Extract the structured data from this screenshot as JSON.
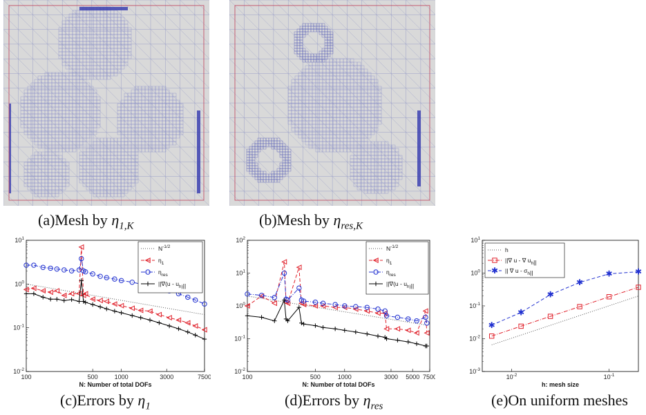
{
  "captions": {
    "a": {
      "prefix": "(a)Mesh by ",
      "math": "η",
      "sub": "1,K"
    },
    "b": {
      "prefix": "(b)Mesh by ",
      "math": "η",
      "sub": "res,K"
    },
    "c": {
      "prefix": "(c)Errors by ",
      "math": "η",
      "sub": "1"
    },
    "d": {
      "prefix": "(d)Errors by ",
      "math": "η",
      "sub": "res"
    },
    "e": {
      "prefix": "(e)On uniform meshes",
      "math": "",
      "sub": ""
    }
  },
  "colors": {
    "mesh_bg": "#d9d9d9",
    "mesh_line": "#9aa0c8",
    "mesh_dense": "#3b3fb0",
    "boundary": "#c0405a",
    "red": "#e0202a",
    "blue": "#2030d0",
    "black": "#000000",
    "gray": "#555555"
  },
  "chart_data": [
    {
      "type": "line",
      "xscale": "log",
      "yscale": "log",
      "xlim": [
        100,
        7500
      ],
      "ylim": [
        0.01,
        10
      ],
      "xlabel": "N: Number of total DOFs",
      "xticks": [
        "100",
        "500",
        "1000",
        "3000",
        "7500"
      ],
      "xtick_values": [
        100,
        500,
        1000,
        3000,
        7500
      ],
      "yticks": [
        "10^-2",
        "10^-1",
        "10^0",
        "10^1"
      ],
      "legend": [
        "N^-1/2",
        "η_1",
        "η_res",
        "||∇(u - u_h)||"
      ],
      "legend_position": "top-right",
      "series": [
        {
          "name": "N^-1/2",
          "style": "dotted",
          "color": "#555555",
          "x": [
            100,
            7500
          ],
          "y": [
            1.0,
            0.2
          ]
        },
        {
          "name": "η_1",
          "style": "dashed",
          "color": "#e0202a",
          "marker": "triangle-left",
          "x": [
            100,
            120,
            150,
            180,
            210,
            250,
            300,
            360,
            380,
            400,
            420,
            500,
            600,
            700,
            850,
            1000,
            1300,
            1600,
            2000,
            2500,
            3200,
            4000,
            5000,
            6000,
            7500
          ],
          "y": [
            0.75,
            0.8,
            0.7,
            0.65,
            0.7,
            0.55,
            0.6,
            0.6,
            7.0,
            0.55,
            0.6,
            0.45,
            0.42,
            0.4,
            0.35,
            0.32,
            0.28,
            0.25,
            0.24,
            0.2,
            0.17,
            0.15,
            0.13,
            0.11,
            0.09
          ]
        },
        {
          "name": "η_res",
          "style": "dashdot",
          "color": "#2030d0",
          "marker": "circle",
          "x": [
            100,
            120,
            150,
            180,
            210,
            250,
            300,
            360,
            380,
            400,
            420,
            500,
            600,
            700,
            850,
            1000,
            1300,
            1600,
            2000,
            2500,
            3200,
            4000,
            5000,
            6000,
            7500
          ],
          "y": [
            2.7,
            2.7,
            2.4,
            2.3,
            2.2,
            2.1,
            2.0,
            2.1,
            3.8,
            2.0,
            1.9,
            1.7,
            1.5,
            1.4,
            1.3,
            1.2,
            1.1,
            1.0,
            0.9,
            0.8,
            0.7,
            0.6,
            0.5,
            0.43,
            0.35
          ]
        },
        {
          "name": "||∇(u - u_h)||",
          "style": "solid",
          "color": "#000000",
          "marker": "plus",
          "x": [
            100,
            120,
            150,
            180,
            210,
            250,
            300,
            360,
            380,
            400,
            420,
            500,
            600,
            700,
            850,
            1000,
            1300,
            1600,
            2000,
            2500,
            3200,
            4000,
            5000,
            6000,
            7500
          ],
          "y": [
            0.6,
            0.6,
            0.5,
            0.45,
            0.45,
            0.42,
            0.44,
            0.4,
            1.2,
            0.4,
            0.38,
            0.34,
            0.3,
            0.27,
            0.24,
            0.22,
            0.19,
            0.17,
            0.15,
            0.13,
            0.11,
            0.095,
            0.08,
            0.068,
            0.055
          ]
        }
      ]
    },
    {
      "type": "line",
      "xscale": "log",
      "yscale": "log",
      "xlim": [
        100,
        7500
      ],
      "ylim": [
        0.01,
        100
      ],
      "xlabel": "N: Number of total DOFs",
      "xticks": [
        "100",
        "500",
        "1000",
        "3000",
        "5000",
        "7500"
      ],
      "xtick_values": [
        100,
        500,
        1000,
        3000,
        5000,
        7500
      ],
      "yticks": [
        "10^-2",
        "10^-1",
        "10^0",
        "10^1",
        "10^2"
      ],
      "legend": [
        "N^-1/2",
        "η_1",
        "η_res",
        "||∇(u - u_h)||"
      ],
      "legend_position": "top-right",
      "series": [
        {
          "name": "N^-1/2",
          "style": "dotted",
          "color": "#555555",
          "x": [
            100,
            7500
          ],
          "y": [
            2.0,
            0.25
          ]
        },
        {
          "name": "η_1",
          "style": "dashed",
          "color": "#e0202a",
          "marker": "triangle-left",
          "x": [
            100,
            140,
            190,
            240,
            250,
            260,
            340,
            360,
            380,
            500,
            600,
            800,
            1000,
            1300,
            1700,
            2200,
            2600,
            2700,
            3500,
            4500,
            5500,
            6800,
            7000
          ],
          "y": [
            1.0,
            2.0,
            1.2,
            22.0,
            1.3,
            1.2,
            15.0,
            1.2,
            1.1,
            1.0,
            1.0,
            0.9,
            0.9,
            0.8,
            0.7,
            0.6,
            0.6,
            0.2,
            0.2,
            0.18,
            0.15,
            0.7,
            0.15
          ]
        },
        {
          "name": "η_res",
          "style": "dashdot",
          "color": "#2030d0",
          "marker": "circle",
          "x": [
            100,
            140,
            190,
            240,
            250,
            260,
            340,
            360,
            380,
            500,
            600,
            800,
            1000,
            1300,
            1700,
            2200,
            2600,
            2700,
            3500,
            4500,
            5500,
            6800,
            7000
          ],
          "y": [
            2.3,
            2.1,
            1.8,
            10.0,
            1.6,
            1.5,
            3.5,
            1.5,
            1.4,
            1.3,
            1.2,
            1.1,
            1.0,
            0.95,
            0.9,
            0.8,
            0.7,
            0.5,
            0.45,
            0.4,
            0.35,
            0.45,
            0.3
          ]
        },
        {
          "name": "||∇(u - u_h)||",
          "style": "solid",
          "color": "#000000",
          "marker": "plus",
          "x": [
            100,
            140,
            190,
            240,
            250,
            260,
            340,
            360,
            380,
            500,
            600,
            800,
            1000,
            1300,
            1700,
            2200,
            2600,
            2700,
            3500,
            4500,
            5500,
            6800,
            7000
          ],
          "y": [
            0.5,
            0.45,
            0.35,
            1.5,
            0.4,
            0.35,
            0.9,
            0.3,
            0.28,
            0.25,
            0.22,
            0.2,
            0.18,
            0.16,
            0.14,
            0.12,
            0.11,
            0.1,
            0.09,
            0.08,
            0.07,
            0.06,
            0.06
          ]
        }
      ]
    },
    {
      "type": "line",
      "xscale": "log",
      "yscale": "log",
      "xlim": [
        0.005,
        0.2
      ],
      "ylim": [
        0.001,
        10
      ],
      "xlabel": "h: mesh size",
      "xticks": [
        "10^-2",
        "10^-1"
      ],
      "xtick_values": [
        0.01,
        0.1
      ],
      "yticks": [
        "10^-3",
        "10^-2",
        "10^-1",
        "10^0",
        "10^1"
      ],
      "legend": [
        "h",
        "||∇ u - ∇ u_h||",
        "|| ∇ u - σ_h||"
      ],
      "legend_position": "top-left",
      "series": [
        {
          "name": "h",
          "style": "dotted",
          "color": "#555555",
          "x": [
            0.00625,
            0.2
          ],
          "y": [
            0.0065,
            0.2
          ]
        },
        {
          "name": "||∇ u - ∇ u_h||",
          "style": "dashdot",
          "color": "#e0202a",
          "marker": "square",
          "x": [
            0.00625,
            0.0125,
            0.025,
            0.05,
            0.1,
            0.2
          ],
          "y": [
            0.012,
            0.024,
            0.048,
            0.095,
            0.19,
            0.37
          ]
        },
        {
          "name": "|| ∇ u - σ_h||",
          "style": "dashed",
          "color": "#2030d0",
          "marker": "star",
          "x": [
            0.00625,
            0.0125,
            0.025,
            0.05,
            0.1,
            0.2
          ],
          "y": [
            0.026,
            0.063,
            0.22,
            0.52,
            0.95,
            1.1
          ]
        }
      ]
    }
  ]
}
